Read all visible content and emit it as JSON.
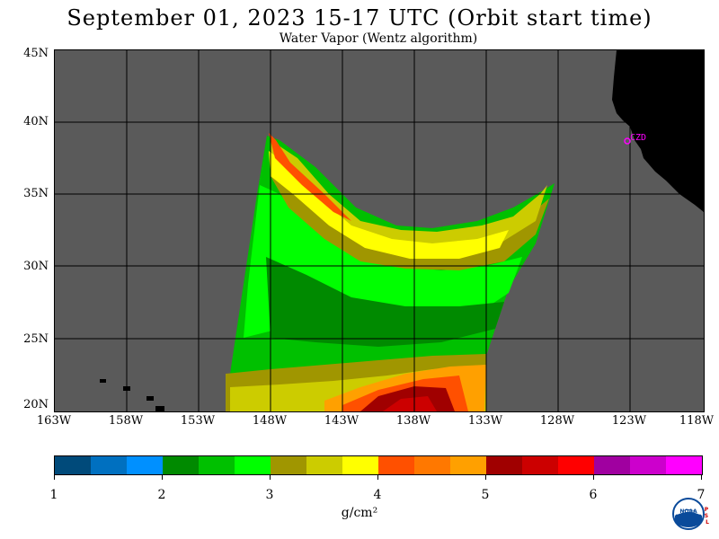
{
  "header": {
    "title": "September 01, 2023  15-17 UTC  (Orbit start time)",
    "subtitle": "Water Vapor (Wentz algorithm)"
  },
  "map": {
    "lat_labels": [
      "45N",
      "40N",
      "35N",
      "30N",
      "25N",
      "20N"
    ],
    "lon_labels": [
      "163W",
      "158W",
      "153W",
      "148W",
      "143W",
      "138W",
      "133W",
      "128W",
      "123W",
      "118W"
    ],
    "lat_range": [
      20,
      45
    ],
    "lon_range": [
      -163,
      -118
    ],
    "station_label": "CZD",
    "colors": {
      "ocean_no_data": "#5a5a5a",
      "land": "#000000",
      "station": "#ff00ff"
    }
  },
  "colorbar": {
    "tick_labels": [
      "1",
      "2",
      "3",
      "4",
      "5",
      "6",
      "7"
    ],
    "units": "g/cm²",
    "colors": [
      "#004a7a",
      "#0070c0",
      "#0090ff",
      "#008a00",
      "#00c000",
      "#00ff00",
      "#a09600",
      "#cccc00",
      "#ffff00",
      "#ff5000",
      "#ff7800",
      "#ffa000",
      "#a00000",
      "#cc0000",
      "#ff0000",
      "#a000a0",
      "#cc00cc",
      "#ff00ff"
    ]
  },
  "logo": {
    "icon": "noaa-logo-icon",
    "text": "NOAA",
    "side_text": "PSL"
  }
}
